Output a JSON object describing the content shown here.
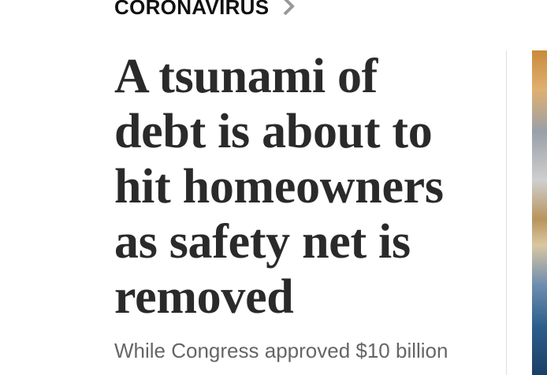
{
  "kicker": "CORONAVIRUS",
  "headline_lines": [
    "A tsunami of",
    "debt is about to",
    "hit homeowners",
    "as safety net is",
    "removed"
  ],
  "dek": "While Congress approved $10 billion"
}
